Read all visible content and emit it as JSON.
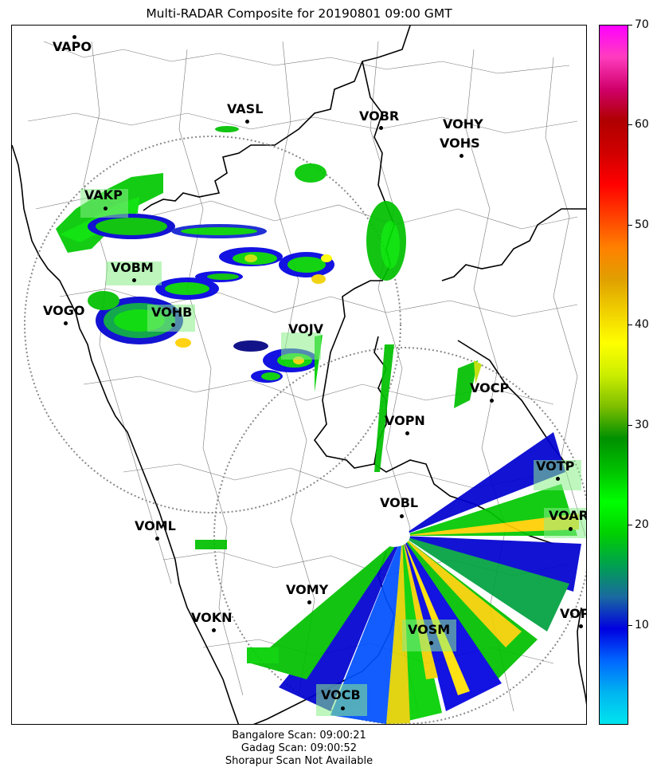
{
  "title": "Multi-RADAR Composite for 20190801 09:00 GMT",
  "stations": [
    {
      "id": "VAPO"
    },
    {
      "id": "VASL"
    },
    {
      "id": "VOBR"
    },
    {
      "id": "VOHY"
    },
    {
      "id": "VOHS"
    },
    {
      "id": "VAKP"
    },
    {
      "id": "VOBM"
    },
    {
      "id": "VOGO"
    },
    {
      "id": "VOHB"
    },
    {
      "id": "VOJV"
    },
    {
      "id": "VOCP"
    },
    {
      "id": "VOPN"
    },
    {
      "id": "VOTP"
    },
    {
      "id": "VOBL"
    },
    {
      "id": "VOAR"
    },
    {
      "id": "VOML"
    },
    {
      "id": "VOMY"
    },
    {
      "id": "VOKN"
    },
    {
      "id": "VOPC"
    },
    {
      "id": "VOSM"
    },
    {
      "id": "VOCB"
    }
  ],
  "radars": [
    {
      "name": "Gadag",
      "status": "available"
    },
    {
      "name": "Bangalore",
      "status": "available"
    }
  ],
  "colorbar": {
    "min": 0,
    "max": 70,
    "ticks": [
      10,
      20,
      30,
      40,
      50,
      60,
      70
    ],
    "tick_labels": [
      "10",
      "20",
      "30",
      "40",
      "50",
      "60",
      "70"
    ],
    "colors": [
      "#00e5ee",
      "#00b4f0",
      "#0066ff",
      "#0000e0",
      "#1a6aa0",
      "#00a050",
      "#00d000",
      "#00ff00",
      "#00c000",
      "#009000",
      "#7fbf00",
      "#ccee00",
      "#ffff00",
      "#f0d000",
      "#e0a000",
      "#ff8000",
      "#ff4000",
      "#ff0000",
      "#d00000",
      "#b00000",
      "#d0006a",
      "#ff3dbf",
      "#ff00ff"
    ]
  },
  "footer": {
    "line1": "Bangalore Scan: 09:00:21",
    "line2": "Gadag Scan: 09:00:52",
    "line3": "Shorapur Scan Not Available"
  }
}
